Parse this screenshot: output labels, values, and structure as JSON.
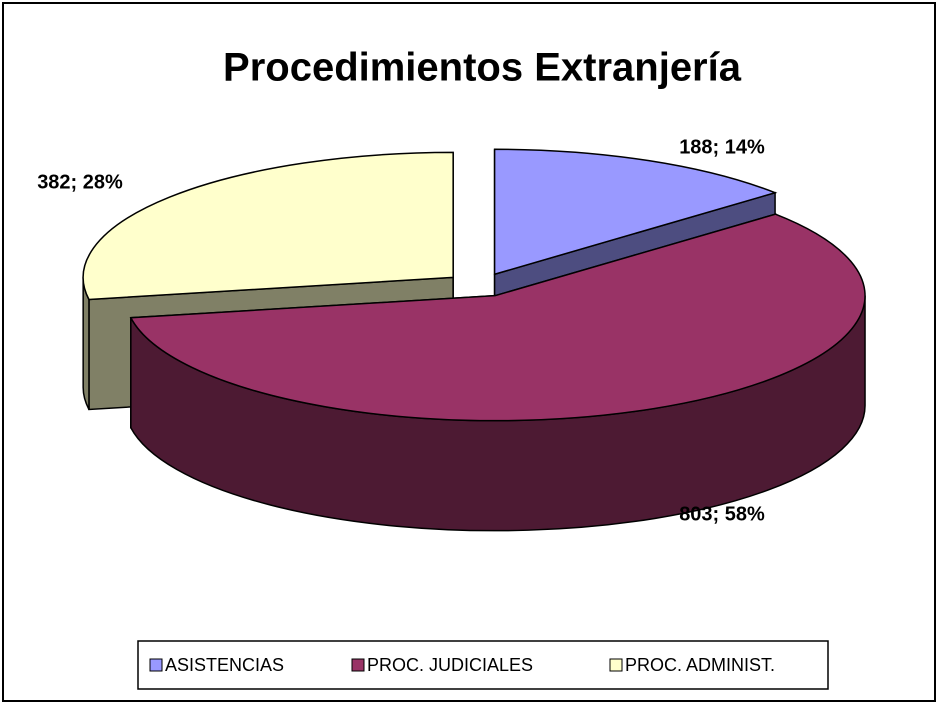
{
  "chart_data": {
    "type": "pie3d",
    "title": "Procedimientos Extranjería",
    "categories": [
      "ASISTENCIAS",
      "PROC. JUDICIALES",
      "PROC. ADMINIST."
    ],
    "values": [
      188,
      803,
      382
    ],
    "value_labels": [
      "188; 14%",
      "803; 58%",
      "382; 28%"
    ],
    "colors": [
      "#9999ff",
      "#993366",
      "#ffffcc"
    ],
    "legend": "bottom"
  }
}
